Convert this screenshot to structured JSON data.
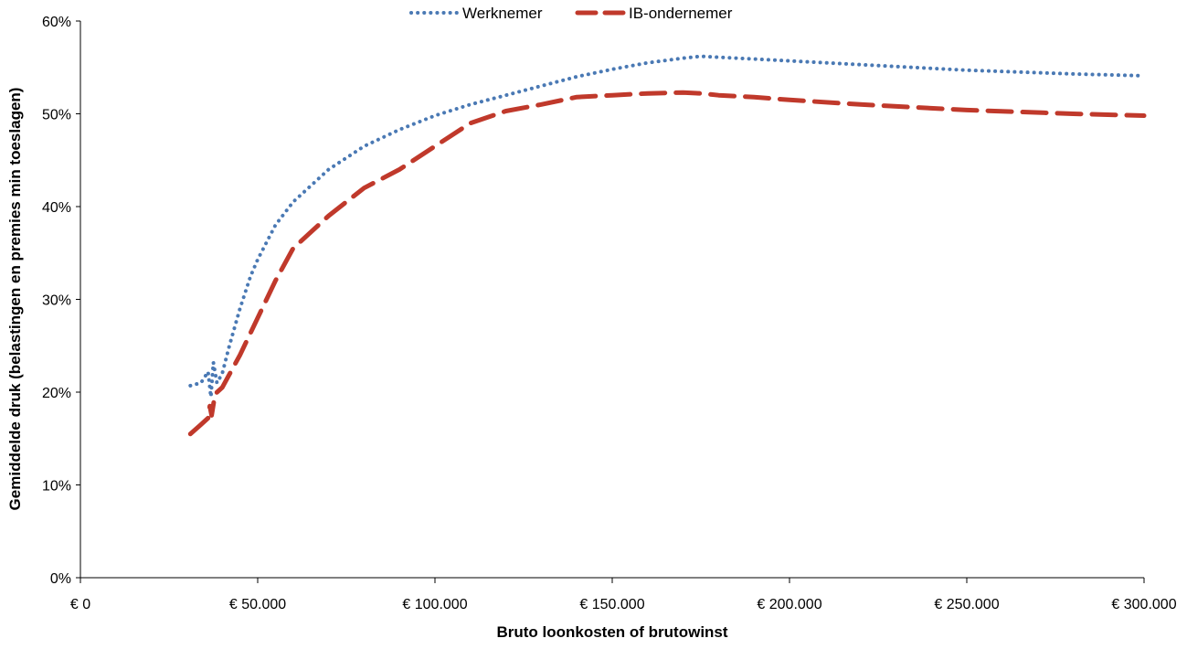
{
  "chart_data": {
    "type": "line",
    "title": "",
    "xlabel": "Bruto loonkosten of brutowinst",
    "ylabel": "Gemiddelde druk (belastingen en premies min toeslagen)",
    "xlim": [
      0,
      300000
    ],
    "ylim": [
      0,
      0.6
    ],
    "x_ticks": [
      0,
      50000,
      100000,
      150000,
      200000,
      250000,
      300000
    ],
    "x_tick_labels": [
      "€ 0",
      "€ 50.000",
      "€ 100.000",
      "€ 150.000",
      "€ 200.000",
      "€ 250.000",
      "€ 300.000"
    ],
    "y_ticks": [
      0,
      0.1,
      0.2,
      0.3,
      0.4,
      0.5,
      0.6
    ],
    "y_tick_labels": [
      "0%",
      "10%",
      "20%",
      "30%",
      "40%",
      "50%",
      "60%"
    ],
    "legend_position": "top-center",
    "grid": false,
    "series": [
      {
        "name": "Werknemer",
        "color": "#4a79b4",
        "style": "dotted",
        "x": [
          31000,
          34000,
          36000,
          36800,
          37500,
          38500,
          40000,
          42000,
          45000,
          48000,
          50000,
          55000,
          60000,
          70000,
          80000,
          90000,
          100000,
          110000,
          120000,
          130000,
          140000,
          150000,
          160000,
          170000,
          175000,
          180000,
          190000,
          200000,
          220000,
          250000,
          280000,
          300000
        ],
        "values": [
          0.207,
          0.21,
          0.222,
          0.195,
          0.232,
          0.21,
          0.22,
          0.25,
          0.29,
          0.325,
          0.343,
          0.38,
          0.405,
          0.44,
          0.465,
          0.483,
          0.498,
          0.51,
          0.52,
          0.53,
          0.54,
          0.548,
          0.555,
          0.56,
          0.562,
          0.561,
          0.559,
          0.557,
          0.553,
          0.547,
          0.543,
          0.541
        ]
      },
      {
        "name": "IB-ondernemer",
        "color": "#c0392b",
        "style": "dashed",
        "x": [
          31000,
          34000,
          36000,
          36500,
          37000,
          38000,
          40000,
          45000,
          50000,
          55000,
          60000,
          70000,
          80000,
          90000,
          100000,
          110000,
          120000,
          130000,
          140000,
          150000,
          160000,
          170000,
          175000,
          180000,
          190000,
          200000,
          220000,
          250000,
          280000,
          300000
        ],
        "values": [
          0.155,
          0.165,
          0.172,
          0.185,
          0.175,
          0.198,
          0.205,
          0.24,
          0.28,
          0.32,
          0.355,
          0.39,
          0.42,
          0.44,
          0.465,
          0.49,
          0.503,
          0.51,
          0.518,
          0.52,
          0.522,
          0.523,
          0.522,
          0.52,
          0.518,
          0.515,
          0.51,
          0.504,
          0.5,
          0.498
        ]
      }
    ]
  }
}
